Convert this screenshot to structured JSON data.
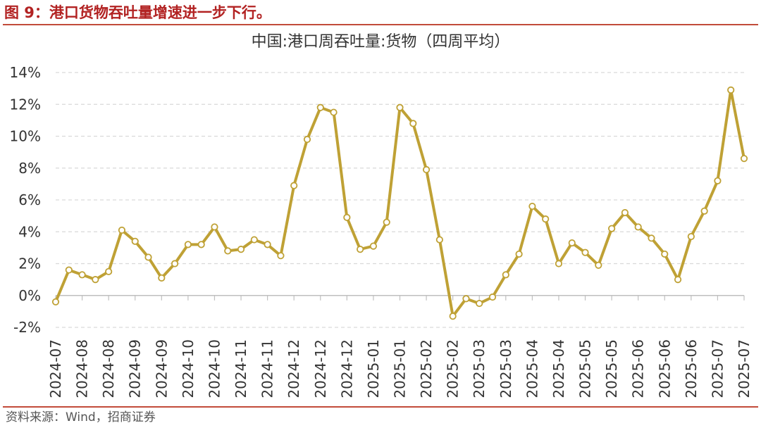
{
  "figure": {
    "title": "图 9：港口货物吞吐量增速进一步下行。",
    "source": "资料来源：Wind，招商证券"
  },
  "colors": {
    "line": "#BFA135",
    "grid": "#D9D9D9",
    "rule": "#C24B3A",
    "title_red": "#B22222"
  },
  "chart_data": {
    "type": "line",
    "title": "中国:港口周吞吐量:货物（四周平均）",
    "xlabel": "",
    "ylabel": "",
    "ylim": [
      -2,
      14
    ],
    "yticks": [
      -2,
      0,
      2,
      4,
      6,
      8,
      10,
      12,
      14
    ],
    "ytick_labels": [
      "-2%",
      "0%",
      "2%",
      "4%",
      "6%",
      "8%",
      "10%",
      "12%",
      "14%"
    ],
    "grid": true,
    "legend": "none",
    "x_tick_labels": [
      "2024-07",
      "2024-08",
      "2024-08",
      "2024-09",
      "2024-09",
      "2024-10",
      "2024-10",
      "2024-11",
      "2024-11",
      "2024-12",
      "2024-12",
      "2024-12",
      "2025-01",
      "2025-01",
      "2025-02",
      "2025-02",
      "2025-03",
      "2025-03",
      "2025-04",
      "2025-04",
      "2025-05",
      "2025-05",
      "2025-06",
      "2025-06",
      "2025-06",
      "2025-07",
      "2025-07"
    ],
    "series": [
      {
        "values": [
          -0.4,
          1.6,
          1.3,
          1.0,
          1.5,
          4.1,
          3.4,
          2.4,
          1.1,
          2.0,
          3.2,
          3.2,
          4.3,
          2.8,
          2.9,
          3.5,
          3.2,
          2.5,
          6.9,
          9.8,
          11.8,
          11.5,
          4.9,
          2.9,
          3.1,
          4.6,
          11.8,
          10.8,
          7.9,
          3.5,
          -1.3,
          -0.2,
          -0.5,
          -0.1,
          1.3,
          2.6,
          5.6,
          4.8,
          2.0,
          3.3,
          2.7,
          1.9,
          4.2,
          5.2,
          4.3,
          3.6,
          2.6,
          1.0,
          3.7,
          5.3,
          7.2,
          12.9,
          8.6
        ]
      }
    ]
  }
}
